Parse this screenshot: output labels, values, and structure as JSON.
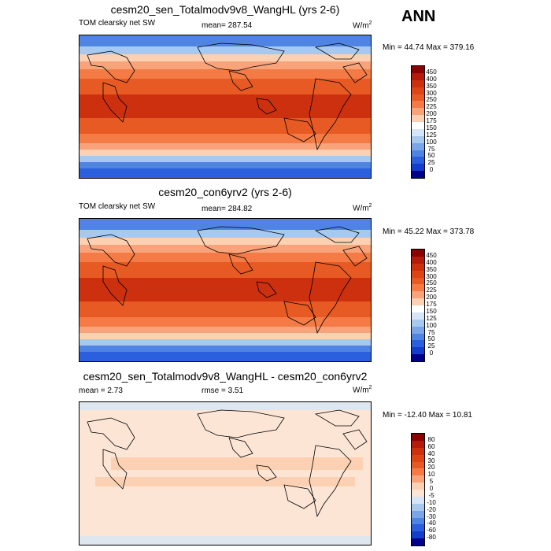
{
  "season": "ANN",
  "panels": [
    {
      "title": "cesm20_sen_Totalmodv9v8_WangHL (yrs 2-6)",
      "left_label": "TOM clearsky net SW",
      "center_label": "mean= 287.54",
      "units": "W/m",
      "units_sup": "2",
      "minmax": "Min =  44.74 Max = 379.16",
      "colorbar": {
        "labels": [
          "450",
          "400",
          "350",
          "300",
          "250",
          "225",
          "200",
          "175",
          "150",
          "125",
          "100",
          "75",
          "50",
          "25",
          "0"
        ],
        "colors": [
          "#8b0000",
          "#b51b0a",
          "#cc300f",
          "#dd4416",
          "#e85a23",
          "#f47b45",
          "#f9a37a",
          "#fcd0b3",
          "#ffffff",
          "#d6e6f6",
          "#a8c8ee",
          "#7aa6e8",
          "#4f84e3",
          "#2b5fde",
          "#123ecb",
          "#00008b"
        ]
      }
    },
    {
      "title": "cesm20_con6yrv2 (yrs 2-6)",
      "left_label": "TOM clearsky net SW",
      "center_label": "mean= 284.82",
      "units": "W/m",
      "units_sup": "2",
      "minmax": "Min =  45.22 Max = 373.78",
      "colorbar": {
        "labels": [
          "450",
          "400",
          "350",
          "300",
          "250",
          "225",
          "200",
          "175",
          "150",
          "125",
          "100",
          "75",
          "50",
          "25",
          "0"
        ],
        "colors": [
          "#8b0000",
          "#b51b0a",
          "#cc300f",
          "#dd4416",
          "#e85a23",
          "#f47b45",
          "#f9a37a",
          "#fcd0b3",
          "#ffffff",
          "#d6e6f6",
          "#a8c8ee",
          "#7aa6e8",
          "#4f84e3",
          "#2b5fde",
          "#123ecb",
          "#00008b"
        ]
      }
    },
    {
      "title": "cesm20_sen_Totalmodv9v8_WangHL - cesm20_con6yrv2",
      "left_label": "mean =   2.73",
      "center_label": "rmse =   3.51",
      "units": "W/m",
      "units_sup": "2",
      "minmax": "Min = -12.40 Max =  10.81",
      "colorbar": {
        "labels": [
          "80",
          "60",
          "40",
          "30",
          "20",
          "10",
          "5",
          "0",
          "-5",
          "-10",
          "-20",
          "-30",
          "-40",
          "-60",
          "-80"
        ],
        "colors": [
          "#8b0000",
          "#b51b0a",
          "#cc300f",
          "#dd4416",
          "#e85a23",
          "#f47b45",
          "#f9a37a",
          "#fcd0b3",
          "#fde5d6",
          "#d6e6f6",
          "#a8c8ee",
          "#7aa6e8",
          "#4f84e3",
          "#2b5fde",
          "#123ecb",
          "#00008b"
        ]
      }
    }
  ]
}
